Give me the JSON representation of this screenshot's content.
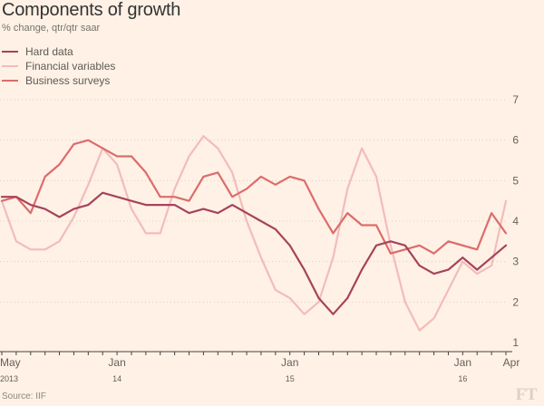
{
  "header": {
    "title": "Components of growth",
    "subtitle": "% change, qtr/qtr saar"
  },
  "footer": {
    "source": "Source: IIF",
    "logo": "FT"
  },
  "colors": {
    "background": "#fff1e5",
    "hard_data": "#a5435c",
    "financial_variables": "#f2bcbc",
    "business_surveys": "#dc6c6c",
    "gridline": "#d8cfc5",
    "axis": "#43423e"
  },
  "chart_data": {
    "type": "line",
    "title": "Components of growth",
    "subtitle": "% change, qtr/qtr saar",
    "x": [
      "2013-05",
      "2013-06",
      "2013-07",
      "2013-08",
      "2013-09",
      "2013-10",
      "2013-11",
      "2013-12",
      "2014-01",
      "2014-02",
      "2014-03",
      "2014-04",
      "2014-05",
      "2014-06",
      "2014-07",
      "2014-08",
      "2014-09",
      "2014-10",
      "2014-11",
      "2014-12",
      "2015-01",
      "2015-02",
      "2015-03",
      "2015-04",
      "2015-05",
      "2015-06",
      "2015-07",
      "2015-08",
      "2015-09",
      "2015-10",
      "2015-11",
      "2015-12",
      "2016-01",
      "2016-02",
      "2016-03",
      "2016-04"
    ],
    "x_tick_labels": [
      {
        "month": "May",
        "year": "2013"
      },
      {
        "month": "Jan",
        "year": "14"
      },
      {
        "month": "Jan",
        "year": "15"
      },
      {
        "month": "Jan",
        "year": "16"
      },
      {
        "month": "Apr",
        "year": ""
      }
    ],
    "ylim": [
      1,
      7
    ],
    "y_ticks": [
      1,
      2,
      3,
      4,
      5,
      6,
      7
    ],
    "grid": "horizontal",
    "legend_position": "top-left",
    "series": [
      {
        "name": "Hard data",
        "color": "#a5435c",
        "values": [
          4.6,
          4.6,
          4.4,
          4.3,
          4.1,
          4.3,
          4.4,
          4.7,
          4.6,
          4.5,
          4.4,
          4.4,
          4.4,
          4.2,
          4.3,
          4.2,
          4.4,
          4.2,
          4.0,
          3.8,
          3.4,
          2.8,
          2.1,
          1.7,
          2.1,
          2.8,
          3.4,
          3.5,
          3.4,
          2.9,
          2.7,
          2.8,
          3.1,
          2.8,
          3.1,
          3.4
        ]
      },
      {
        "name": "Financial variables",
        "color": "#f2bcbc",
        "values": [
          4.5,
          3.5,
          3.3,
          3.3,
          3.5,
          4.1,
          4.9,
          5.8,
          5.4,
          4.3,
          3.7,
          3.7,
          4.8,
          5.6,
          6.1,
          5.8,
          5.2,
          4.0,
          3.1,
          2.3,
          2.1,
          1.7,
          2.0,
          3.1,
          4.8,
          5.8,
          5.1,
          3.4,
          2.0,
          1.3,
          1.6,
          2.3,
          3.0,
          2.7,
          2.9,
          4.5
        ]
      },
      {
        "name": "Business surveys",
        "color": "#dc6c6c",
        "values": [
          4.5,
          4.6,
          4.2,
          5.1,
          5.4,
          5.9,
          6.0,
          5.8,
          5.6,
          5.6,
          5.2,
          4.6,
          4.6,
          4.5,
          5.1,
          5.2,
          4.6,
          4.8,
          5.1,
          4.9,
          5.1,
          5.0,
          4.3,
          3.7,
          4.2,
          3.9,
          3.9,
          3.2,
          3.3,
          3.4,
          3.2,
          3.5,
          3.4,
          3.3,
          4.2,
          3.7
        ]
      }
    ]
  }
}
